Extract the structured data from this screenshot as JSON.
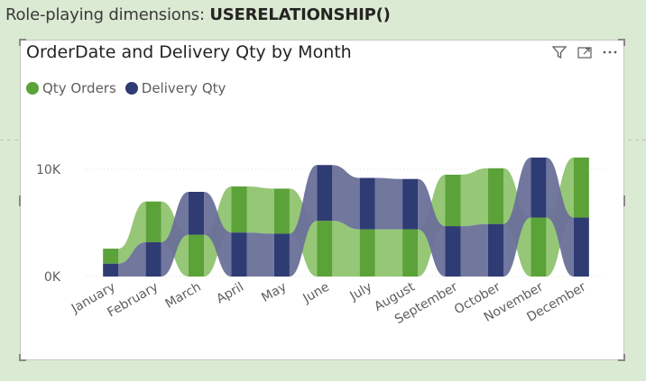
{
  "page": {
    "heading_light": "Role-playing dimensions: ",
    "heading_bold": "USERELATIONSHIP()"
  },
  "visual": {
    "title": "OrderDate and Delivery Qty by Month",
    "icons": [
      "filter-icon",
      "focus-mode-icon",
      "more-options-icon"
    ]
  },
  "chart_data": {
    "type": "ribbon",
    "categories": [
      "January",
      "February",
      "March",
      "April",
      "May",
      "June",
      "July",
      "August",
      "September",
      "October",
      "November",
      "December"
    ],
    "series": [
      {
        "name": "Qty Orders",
        "color": "#5ba238",
        "values": [
          1400,
          3800,
          3900,
          4300,
          4200,
          5200,
          4400,
          4400,
          4800,
          5200,
          5500,
          5600
        ]
      },
      {
        "name": "Delivery Qty",
        "color": "#2f3b73",
        "values": [
          1200,
          3200,
          4000,
          4100,
          4000,
          5200,
          4800,
          4700,
          4700,
          4900,
          5600,
          5500
        ]
      }
    ],
    "yticks": [
      "0K",
      "10K"
    ],
    "ytick_values": [
      0,
      10000
    ],
    "ylim": [
      0,
      12000
    ],
    "legend": "top-left",
    "grid": true
  }
}
